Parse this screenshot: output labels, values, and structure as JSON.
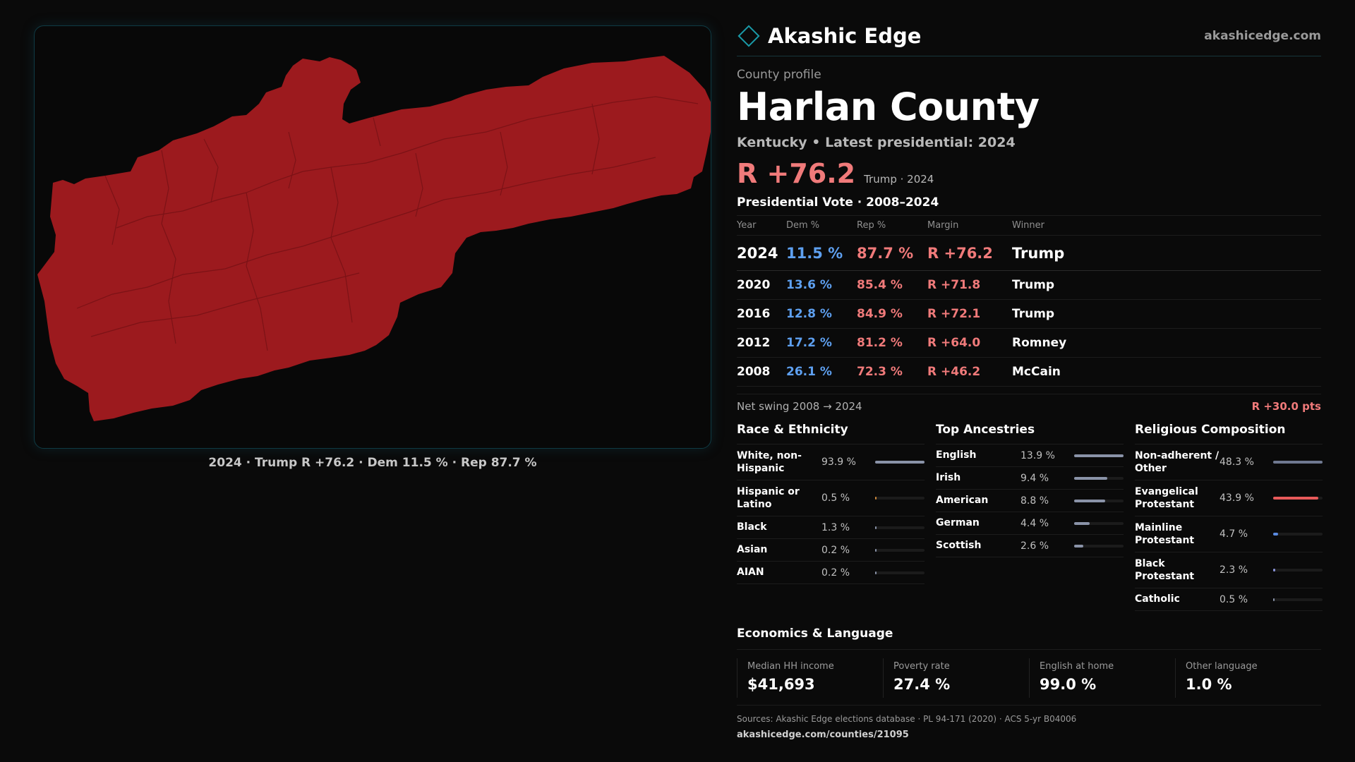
{
  "brand": {
    "name": "Akashic Edge",
    "url": "akashicedge.com",
    "accent": "#1a9aa8"
  },
  "profile": {
    "kicker": "County profile",
    "title": "Harlan County",
    "subtitle": "Kentucky • Latest presidential: 2024",
    "headline_margin": "R +76.2",
    "headline_meta": "Trump · 2024"
  },
  "map": {
    "caption": "2024 · Trump R +76.2 · Dem 11.5 % · Rep 87.7 %",
    "fill_color": "#9c1a1e"
  },
  "votes": {
    "title": "Presidential Vote · 2008–2024",
    "headers": [
      "Year",
      "Dem %",
      "Rep %",
      "Margin",
      "Winner"
    ],
    "rows": [
      {
        "year": "2024",
        "dem": "11.5 %",
        "rep": "87.7 %",
        "margin": "R +76.2",
        "winner": "Trump"
      },
      {
        "year": "2020",
        "dem": "13.6 %",
        "rep": "85.4 %",
        "margin": "R +71.8",
        "winner": "Trump"
      },
      {
        "year": "2016",
        "dem": "12.8 %",
        "rep": "84.9 %",
        "margin": "R +72.1",
        "winner": "Trump"
      },
      {
        "year": "2012",
        "dem": "17.2 %",
        "rep": "81.2 %",
        "margin": "R +64.0",
        "winner": "Romney"
      },
      {
        "year": "2008",
        "dem": "26.1 %",
        "rep": "72.3 %",
        "margin": "R +46.2",
        "winner": "McCain"
      }
    ],
    "swing_label": "Net swing 2008 → 2024",
    "swing_value": "R +30.0 pts"
  },
  "race": {
    "title": "Race & Ethnicity",
    "items": [
      {
        "label": "White, non-Hispanic",
        "value": "93.9 %",
        "pct": 93.9,
        "color": "#8a93a8"
      },
      {
        "label": "Hispanic or Latino",
        "value": "0.5 %",
        "pct": 0.5,
        "color": "#d08a3a"
      },
      {
        "label": "Black",
        "value": "1.3 %",
        "pct": 1.3,
        "color": "#8a93a8"
      },
      {
        "label": "Asian",
        "value": "0.2 %",
        "pct": 0.2,
        "color": "#8a93a8"
      },
      {
        "label": "AIAN",
        "value": "0.2 %",
        "pct": 0.2,
        "color": "#8a93a8"
      }
    ]
  },
  "ancestry": {
    "title": "Top Ancestries",
    "items": [
      {
        "label": "English",
        "value": "13.9 %",
        "pct": 13.9,
        "color": "#8a93a8"
      },
      {
        "label": "Irish",
        "value": "9.4 %",
        "pct": 9.4,
        "color": "#8a93a8"
      },
      {
        "label": "American",
        "value": "8.8 %",
        "pct": 8.8,
        "color": "#8a93a8"
      },
      {
        "label": "German",
        "value": "4.4 %",
        "pct": 4.4,
        "color": "#8a93a8"
      },
      {
        "label": "Scottish",
        "value": "2.6 %",
        "pct": 2.6,
        "color": "#8a93a8"
      }
    ]
  },
  "religion": {
    "title": "Religious Composition",
    "items": [
      {
        "label": "Non-adherent / Other",
        "value": "48.3 %",
        "pct": 48.3,
        "color": "#6f7890"
      },
      {
        "label": "Evangelical Protestant",
        "value": "43.9 %",
        "pct": 43.9,
        "color": "#e85a5a"
      },
      {
        "label": "Mainline Protestant",
        "value": "4.7 %",
        "pct": 4.7,
        "color": "#5a8ae0"
      },
      {
        "label": "Black Protestant",
        "value": "2.3 %",
        "pct": 2.3,
        "color": "#8a93d8"
      },
      {
        "label": "Catholic",
        "value": "0.5 %",
        "pct": 0.5,
        "color": "#8a93a8"
      }
    ]
  },
  "economics": {
    "title": "Economics & Language",
    "cards": [
      {
        "label": "Median HH income",
        "value": "$41,693"
      },
      {
        "label": "Poverty rate",
        "value": "27.4 %"
      },
      {
        "label": "English at home",
        "value": "99.0 %"
      },
      {
        "label": "Other language",
        "value": "1.0 %"
      }
    ]
  },
  "sources": {
    "text": "Sources: Akashic Edge elections database · PL 94-171 (2020) · ACS 5-yr B04006",
    "url": "akashicedge.com/counties/21095"
  }
}
